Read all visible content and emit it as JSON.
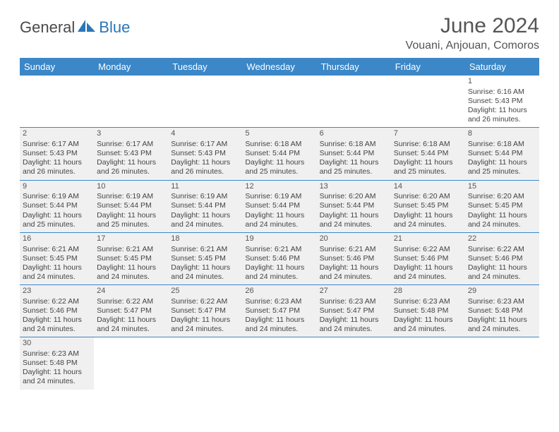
{
  "logo": {
    "text1": "General",
    "text2": "Blue"
  },
  "title": "June 2024",
  "location": "Vouani, Anjouan, Comoros",
  "colors": {
    "header_bg": "#3b87c8",
    "header_text": "#ffffff",
    "cell_bg": "#f0f0f0",
    "border": "#3b87c8",
    "logo_blue": "#2a76b8",
    "text": "#444444"
  },
  "dayHeaders": [
    "Sunday",
    "Monday",
    "Tuesday",
    "Wednesday",
    "Thursday",
    "Friday",
    "Saturday"
  ],
  "firstDayIndex": 6,
  "daysInMonth": 30,
  "days": {
    "1": {
      "sunrise": "6:16 AM",
      "sunset": "5:43 PM",
      "daylight": "11 hours and 26 minutes."
    },
    "2": {
      "sunrise": "6:17 AM",
      "sunset": "5:43 PM",
      "daylight": "11 hours and 26 minutes."
    },
    "3": {
      "sunrise": "6:17 AM",
      "sunset": "5:43 PM",
      "daylight": "11 hours and 26 minutes."
    },
    "4": {
      "sunrise": "6:17 AM",
      "sunset": "5:43 PM",
      "daylight": "11 hours and 26 minutes."
    },
    "5": {
      "sunrise": "6:18 AM",
      "sunset": "5:44 PM",
      "daylight": "11 hours and 25 minutes."
    },
    "6": {
      "sunrise": "6:18 AM",
      "sunset": "5:44 PM",
      "daylight": "11 hours and 25 minutes."
    },
    "7": {
      "sunrise": "6:18 AM",
      "sunset": "5:44 PM",
      "daylight": "11 hours and 25 minutes."
    },
    "8": {
      "sunrise": "6:18 AM",
      "sunset": "5:44 PM",
      "daylight": "11 hours and 25 minutes."
    },
    "9": {
      "sunrise": "6:19 AM",
      "sunset": "5:44 PM",
      "daylight": "11 hours and 25 minutes."
    },
    "10": {
      "sunrise": "6:19 AM",
      "sunset": "5:44 PM",
      "daylight": "11 hours and 25 minutes."
    },
    "11": {
      "sunrise": "6:19 AM",
      "sunset": "5:44 PM",
      "daylight": "11 hours and 24 minutes."
    },
    "12": {
      "sunrise": "6:19 AM",
      "sunset": "5:44 PM",
      "daylight": "11 hours and 24 minutes."
    },
    "13": {
      "sunrise": "6:20 AM",
      "sunset": "5:44 PM",
      "daylight": "11 hours and 24 minutes."
    },
    "14": {
      "sunrise": "6:20 AM",
      "sunset": "5:45 PM",
      "daylight": "11 hours and 24 minutes."
    },
    "15": {
      "sunrise": "6:20 AM",
      "sunset": "5:45 PM",
      "daylight": "11 hours and 24 minutes."
    },
    "16": {
      "sunrise": "6:21 AM",
      "sunset": "5:45 PM",
      "daylight": "11 hours and 24 minutes."
    },
    "17": {
      "sunrise": "6:21 AM",
      "sunset": "5:45 PM",
      "daylight": "11 hours and 24 minutes."
    },
    "18": {
      "sunrise": "6:21 AM",
      "sunset": "5:45 PM",
      "daylight": "11 hours and 24 minutes."
    },
    "19": {
      "sunrise": "6:21 AM",
      "sunset": "5:46 PM",
      "daylight": "11 hours and 24 minutes."
    },
    "20": {
      "sunrise": "6:21 AM",
      "sunset": "5:46 PM",
      "daylight": "11 hours and 24 minutes."
    },
    "21": {
      "sunrise": "6:22 AM",
      "sunset": "5:46 PM",
      "daylight": "11 hours and 24 minutes."
    },
    "22": {
      "sunrise": "6:22 AM",
      "sunset": "5:46 PM",
      "daylight": "11 hours and 24 minutes."
    },
    "23": {
      "sunrise": "6:22 AM",
      "sunset": "5:46 PM",
      "daylight": "11 hours and 24 minutes."
    },
    "24": {
      "sunrise": "6:22 AM",
      "sunset": "5:47 PM",
      "daylight": "11 hours and 24 minutes."
    },
    "25": {
      "sunrise": "6:22 AM",
      "sunset": "5:47 PM",
      "daylight": "11 hours and 24 minutes."
    },
    "26": {
      "sunrise": "6:23 AM",
      "sunset": "5:47 PM",
      "daylight": "11 hours and 24 minutes."
    },
    "27": {
      "sunrise": "6:23 AM",
      "sunset": "5:47 PM",
      "daylight": "11 hours and 24 minutes."
    },
    "28": {
      "sunrise": "6:23 AM",
      "sunset": "5:48 PM",
      "daylight": "11 hours and 24 minutes."
    },
    "29": {
      "sunrise": "6:23 AM",
      "sunset": "5:48 PM",
      "daylight": "11 hours and 24 minutes."
    },
    "30": {
      "sunrise": "6:23 AM",
      "sunset": "5:48 PM",
      "daylight": "11 hours and 24 minutes."
    }
  },
  "labels": {
    "sunrise": "Sunrise:",
    "sunset": "Sunset:",
    "daylight": "Daylight:"
  }
}
